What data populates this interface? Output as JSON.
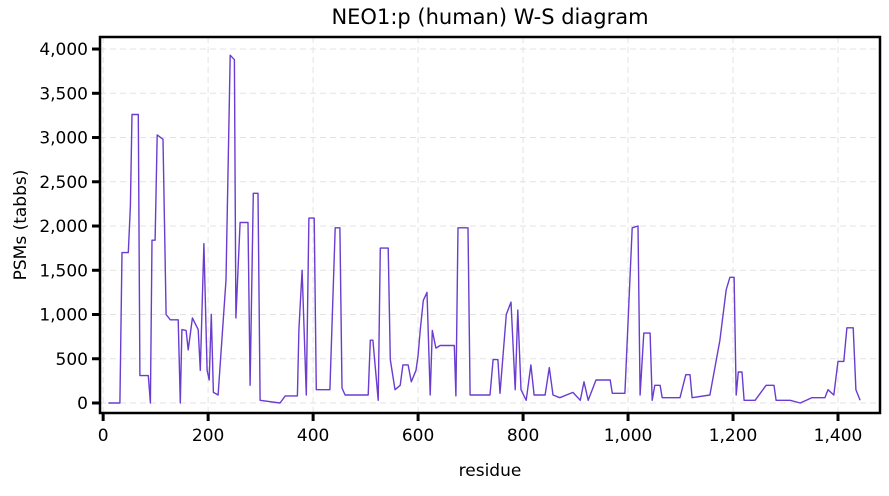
{
  "chart_data": {
    "type": "line",
    "title": "NEO1:p (human) W-S diagram",
    "x_label": "residue",
    "y_label": "PSMs (tabbs)",
    "color": "#6a3ccf",
    "grid": true,
    "xlim": [
      -6,
      1480
    ],
    "ylim": [
      -113,
      4136
    ],
    "xticks": [
      0,
      200,
      400,
      600,
      800,
      {
        "value": 1000,
        "label": "1,000"
      },
      {
        "value": 1200,
        "label": "1,200"
      },
      {
        "value": 1400,
        "label": "1,400"
      }
    ],
    "yticks": [
      0,
      500,
      {
        "value": 1000,
        "label": "1,000"
      },
      {
        "value": 1500,
        "label": "1,500"
      },
      {
        "value": 2000,
        "label": "2,000"
      },
      {
        "value": 2500,
        "label": "2,500"
      },
      {
        "value": 3000,
        "label": "3,000"
      },
      {
        "value": 3500,
        "label": "3,500"
      },
      {
        "value": 4000,
        "label": "4,000"
      }
    ],
    "x": [
      10,
      32,
      36,
      48,
      52,
      55,
      67,
      70,
      86,
      90,
      93,
      99,
      103,
      114,
      120,
      128,
      143,
      147,
      150,
      158,
      162,
      170,
      181,
      185,
      192,
      198,
      202,
      206,
      210,
      219,
      234,
      242,
      250,
      253,
      261,
      276,
      280,
      286,
      295,
      299,
      337,
      347,
      370,
      373,
      379,
      387,
      392,
      402,
      406,
      432,
      442,
      451,
      455,
      461,
      505,
      509,
      514,
      524,
      528,
      543,
      547,
      556,
      566,
      571,
      581,
      587,
      596,
      600,
      604,
      610,
      617,
      623,
      627,
      634,
      642,
      669,
      672,
      676,
      695,
      699,
      737,
      743,
      752,
      756,
      768,
      777,
      785,
      790,
      796,
      806,
      815,
      821,
      842,
      850,
      857,
      870,
      895,
      909,
      916,
      924,
      939,
      966,
      970,
      994,
      1008,
      1019,
      1023,
      1030,
      1042,
      1046,
      1051,
      1061,
      1065,
      1099,
      1110,
      1118,
      1122,
      1156,
      1175,
      1187,
      1194,
      1202,
      1206,
      1210,
      1217,
      1221,
      1242,
      1263,
      1278,
      1282,
      1309,
      1328,
      1350,
      1375,
      1381,
      1392,
      1400,
      1411,
      1417,
      1429,
      1434,
      1442
    ],
    "values": [
      0,
      0,
      1700,
      1700,
      2230,
      3260,
      3260,
      310,
      310,
      0,
      1840,
      1840,
      3030,
      2980,
      1000,
      940,
      940,
      0,
      830,
      820,
      600,
      960,
      830,
      370,
      1800,
      370,
      260,
      1000,
      120,
      90,
      1390,
      3930,
      3880,
      960,
      2040,
      2040,
      200,
      2370,
      2370,
      30,
      0,
      80,
      80,
      830,
      1500,
      90,
      2090,
      2090,
      150,
      150,
      1980,
      1980,
      170,
      90,
      90,
      710,
      710,
      30,
      1750,
      1750,
      490,
      150,
      200,
      430,
      430,
      240,
      370,
      540,
      820,
      1160,
      1250,
      90,
      820,
      620,
      650,
      650,
      80,
      1980,
      1980,
      90,
      90,
      490,
      490,
      110,
      1000,
      1140,
      150,
      1050,
      150,
      30,
      430,
      90,
      90,
      400,
      90,
      60,
      120,
      30,
      240,
      30,
      260,
      260,
      110,
      110,
      1980,
      2000,
      90,
      790,
      790,
      30,
      200,
      200,
      60,
      60,
      320,
      320,
      60,
      90,
      710,
      1280,
      1420,
      1420,
      90,
      350,
      350,
      30,
      30,
      200,
      200,
      30,
      30,
      0,
      60,
      60,
      150,
      90,
      470,
      470,
      850,
      850,
      150,
      30
    ]
  }
}
